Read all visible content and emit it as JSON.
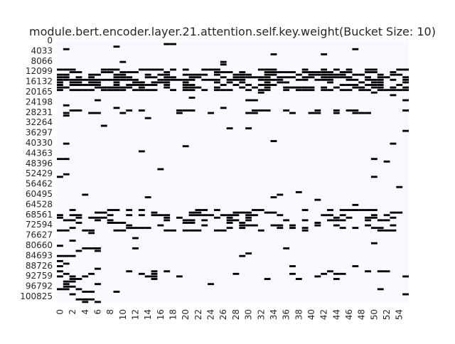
{
  "chart_data": {
    "type": "heatmap",
    "title": "module.bert.encoder.layer.21.attention.self.key.weight(Bucket Size: 10)",
    "xlabel": "",
    "ylabel": "",
    "x_ticks": [
      "0",
      "2",
      "4",
      "6",
      "8",
      "10",
      "12",
      "14",
      "16",
      "18",
      "20",
      "22",
      "24",
      "26",
      "28",
      "30",
      "32",
      "34",
      "36",
      "38",
      "40",
      "42",
      "44",
      "46",
      "48",
      "50",
      "52",
      "54"
    ],
    "y_ticks": [
      "0",
      "4033",
      "8066",
      "12099",
      "16132",
      "20165",
      "24198",
      "28231",
      "32264",
      "36297",
      "40330",
      "44363",
      "48396",
      "52429",
      "56462",
      "60495",
      "64528",
      "68561",
      "72594",
      "76627",
      "80660",
      "84693",
      "88726",
      "92759",
      "96792",
      "100825"
    ],
    "n_columns": 56,
    "n_rows": 103,
    "colorscale": [
      "#f8f9ff",
      "#000000"
    ],
    "grid": false,
    "legend": "none",
    "dense_row_bands": [
      {
        "rows": [
          11,
          19
        ],
        "density": 0.55
      },
      {
        "rows": [
          27,
          28
        ],
        "density": 0.3
      },
      {
        "rows": [
          66,
          70
        ],
        "density": 0.32
      },
      {
        "rows": [
          71,
          74
        ],
        "density": 0.22
      },
      {
        "rows": [
          90,
          93
        ],
        "density": 0.12
      }
    ]
  }
}
